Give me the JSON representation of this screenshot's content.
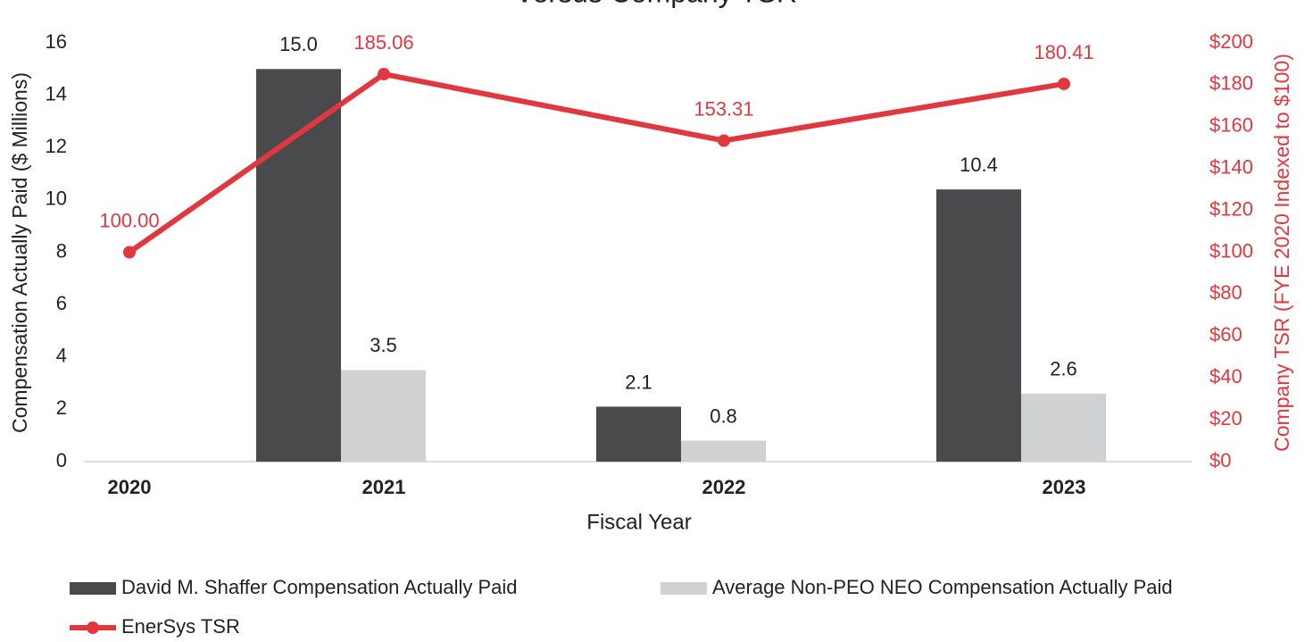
{
  "chart_data": {
    "type": "bar_line",
    "title": "Versus Company TSR",
    "x_label": "Fiscal Year",
    "y_label": "Compensation Actually Paid ($ Millions)",
    "y2_label": "Company TSR (FYE 2020 Indexed to $100)",
    "categories": [
      "2020",
      "2021",
      "2022",
      "2023"
    ],
    "series": [
      {
        "name": "David M. Shaffer Compensation Actually Paid",
        "color": "#4a4a4c",
        "type": "bar",
        "values": [
          null,
          15.0,
          2.1,
          10.4
        ],
        "value_labels": [
          null,
          "15.0",
          "2.1",
          "10.4"
        ]
      },
      {
        "name": "Average Non-PEO NEO Compensation Actually Paid",
        "color": "#d0d1d3",
        "type": "bar",
        "values": [
          null,
          3.5,
          0.8,
          2.6
        ],
        "value_labels": [
          null,
          "3.5",
          "0.8",
          "2.6"
        ]
      },
      {
        "name": "EnerSys TSR",
        "color": "#e0383e",
        "type": "line",
        "axis": "y2",
        "values": [
          100.0,
          185.06,
          153.31,
          180.41
        ],
        "value_labels": [
          "100.00",
          "185.06",
          "153.31",
          "180.41"
        ]
      }
    ],
    "ylim": [
      0,
      16
    ],
    "yticks": [
      0,
      2,
      4,
      6,
      8,
      10,
      12,
      14,
      16
    ],
    "y2lim": [
      0,
      200
    ],
    "y2ticks": [
      {
        "value": 0,
        "label": "$0"
      },
      {
        "value": 20,
        "label": "$20"
      },
      {
        "value": 40,
        "label": "$40"
      },
      {
        "value": 60,
        "label": "$60"
      },
      {
        "value": 80,
        "label": "$80"
      },
      {
        "value": 100,
        "label": "$100"
      },
      {
        "value": 120,
        "label": "$120"
      },
      {
        "value": 140,
        "label": "$140"
      },
      {
        "value": 160,
        "label": "$160"
      },
      {
        "value": 180,
        "label": "$180"
      },
      {
        "value": 200,
        "label": "$200"
      }
    ],
    "legend": "bottom"
  }
}
